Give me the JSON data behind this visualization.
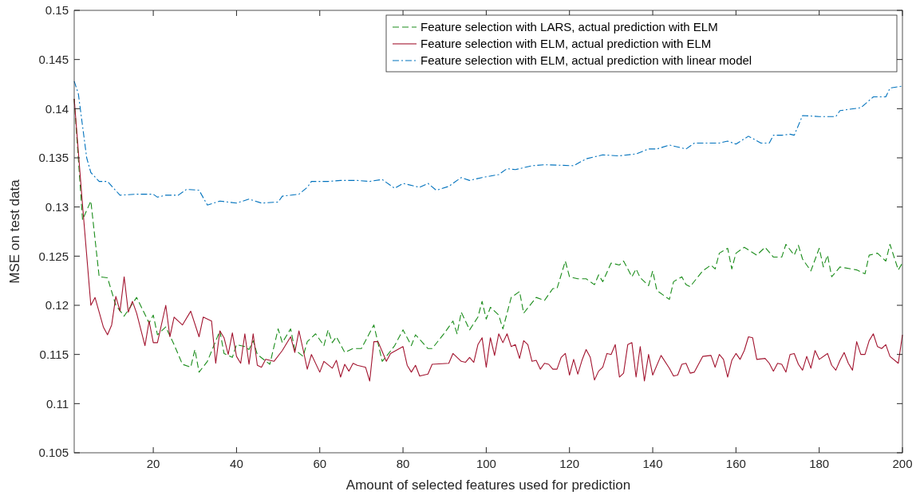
{
  "chart_data": {
    "type": "line",
    "xlabel": "Amount of selected features used for prediction",
    "ylabel": "MSE on test data",
    "xlim": [
      1,
      200
    ],
    "xticks": [
      20,
      40,
      60,
      80,
      100,
      120,
      140,
      160,
      180,
      200
    ],
    "ylim": [
      0.105,
      0.15
    ],
    "yticks": [
      0.105,
      0.11,
      0.115,
      0.12,
      0.125,
      0.13,
      0.135,
      0.14,
      0.145,
      0.15
    ],
    "grid": false,
    "legend": "top right",
    "series": [
      {
        "name": "Feature selection with LARS, actual prediction with ELM",
        "color": "#1a8c1a",
        "line_style": "dashed",
        "x": [
          1,
          3,
          5,
          7,
          9,
          11,
          13,
          16,
          19,
          20,
          21,
          23,
          25,
          27,
          29,
          30,
          31,
          33,
          36,
          37,
          39,
          40,
          42,
          43,
          44,
          45,
          48,
          50,
          51,
          53,
          54,
          56,
          57,
          59,
          61,
          62,
          63,
          64,
          66,
          68,
          70,
          73,
          75,
          76,
          78,
          80,
          82,
          83,
          86,
          87,
          90,
          92,
          93,
          94,
          96,
          98,
          99,
          100,
          101,
          103,
          104,
          106,
          108,
          109,
          112,
          114,
          116,
          117,
          119,
          120,
          122,
          124,
          126,
          127,
          128,
          130,
          132,
          133,
          135,
          136,
          137,
          139,
          140,
          141,
          144,
          145,
          147,
          148,
          149,
          152,
          154,
          155,
          156,
          158,
          159,
          160,
          162,
          165,
          167,
          169,
          170,
          171,
          172,
          174,
          175,
          176,
          178,
          180,
          181,
          182,
          183,
          185,
          189,
          191,
          192,
          194,
          196,
          197,
          199,
          200
        ],
        "values": [
          0.141,
          0.1287,
          0.1306,
          0.1229,
          0.1228,
          0.12,
          0.1189,
          0.1208,
          0.1182,
          0.119,
          0.117,
          0.1178,
          0.116,
          0.114,
          0.1137,
          0.1155,
          0.1132,
          0.1143,
          0.1174,
          0.1151,
          0.1147,
          0.116,
          0.1158,
          0.1155,
          0.1164,
          0.115,
          0.114,
          0.1176,
          0.1162,
          0.1176,
          0.1155,
          0.1148,
          0.1163,
          0.1171,
          0.1159,
          0.1175,
          0.1162,
          0.1168,
          0.1152,
          0.1156,
          0.1156,
          0.118,
          0.1143,
          0.1148,
          0.1159,
          0.1175,
          0.1159,
          0.117,
          0.1156,
          0.1156,
          0.1172,
          0.1184,
          0.1171,
          0.1193,
          0.1175,
          0.1188,
          0.1204,
          0.1186,
          0.1198,
          0.119,
          0.1176,
          0.1208,
          0.1214,
          0.1192,
          0.1208,
          0.1205,
          0.1217,
          0.1217,
          0.1245,
          0.1229,
          0.1227,
          0.1227,
          0.1221,
          0.1231,
          0.1224,
          0.1243,
          0.1241,
          0.1245,
          0.1229,
          0.1237,
          0.1228,
          0.122,
          0.1235,
          0.1215,
          0.1206,
          0.1224,
          0.1229,
          0.1221,
          0.1219,
          0.1235,
          0.1241,
          0.1237,
          0.1253,
          0.1258,
          0.1237,
          0.1253,
          0.1259,
          0.1251,
          0.1259,
          0.1249,
          0.1249,
          0.1249,
          0.1262,
          0.1251,
          0.1261,
          0.1247,
          0.1235,
          0.1258,
          0.1239,
          0.1251,
          0.1229,
          0.1239,
          0.1236,
          0.1232,
          0.1251,
          0.1253,
          0.1245,
          0.1262,
          0.1236,
          0.1243
        ]
      },
      {
        "name": "Feature selection with ELM, actual prediction with ELM",
        "color": "#a2142f",
        "line_style": "solid",
        "x": [
          1,
          3,
          5,
          6,
          8,
          9,
          10,
          11,
          12,
          13,
          14,
          15,
          16,
          18,
          19,
          20,
          21,
          23,
          24,
          25,
          27,
          29,
          31,
          32,
          34,
          35,
          36,
          37,
          38,
          39,
          40,
          41,
          42,
          43,
          44,
          45,
          46,
          47,
          49,
          51,
          53,
          54,
          55,
          56,
          57,
          58,
          60,
          61,
          63,
          64,
          65,
          66,
          67,
          68,
          69,
          71,
          72,
          73,
          74,
          76,
          77,
          80,
          81,
          82,
          83,
          84,
          86,
          87,
          91,
          92,
          94,
          95,
          96,
          97,
          98,
          99,
          100,
          101,
          102,
          103,
          104,
          105,
          106,
          107,
          108,
          109,
          110,
          111,
          112,
          113,
          114,
          115,
          116,
          117,
          118,
          119,
          120,
          121,
          122,
          123,
          124,
          125,
          126,
          127,
          128,
          129,
          130,
          131,
          132,
          133,
          134,
          135,
          136,
          137,
          138,
          139,
          140,
          142,
          144,
          145,
          146,
          147,
          148,
          149,
          150,
          152,
          154,
          155,
          156,
          157,
          158,
          159,
          160,
          161,
          162,
          163,
          164,
          165,
          167,
          168,
          169,
          170,
          171,
          172,
          173,
          174,
          175,
          176,
          177,
          178,
          179,
          180,
          182,
          183,
          184,
          185,
          186,
          187,
          188,
          189,
          190,
          191,
          192,
          193,
          194,
          195,
          196,
          197,
          199,
          200
        ],
        "values": [
          0.141,
          0.1302,
          0.12,
          0.1208,
          0.1178,
          0.117,
          0.118,
          0.1209,
          0.1194,
          0.1229,
          0.1193,
          0.1204,
          0.1192,
          0.1159,
          0.1184,
          0.1162,
          0.1162,
          0.12,
          0.1168,
          0.1188,
          0.118,
          0.1194,
          0.1168,
          0.1188,
          0.1184,
          0.1141,
          0.1174,
          0.1167,
          0.115,
          0.1172,
          0.1148,
          0.1141,
          0.1171,
          0.114,
          0.1171,
          0.1139,
          0.1137,
          0.1145,
          0.1143,
          0.1154,
          0.1168,
          0.1152,
          0.1174,
          0.1155,
          0.1135,
          0.115,
          0.1132,
          0.1143,
          0.1136,
          0.1144,
          0.1127,
          0.114,
          0.1133,
          0.1141,
          0.1139,
          0.1137,
          0.1123,
          0.1163,
          0.1163,
          0.1143,
          0.1151,
          0.1158,
          0.1139,
          0.1132,
          0.1139,
          0.1128,
          0.113,
          0.114,
          0.1141,
          0.1151,
          0.1143,
          0.1142,
          0.1147,
          0.1142,
          0.116,
          0.1167,
          0.1137,
          0.1167,
          0.1149,
          0.1171,
          0.1162,
          0.1171,
          0.1158,
          0.116,
          0.1146,
          0.1164,
          0.116,
          0.1143,
          0.1144,
          0.1135,
          0.1141,
          0.114,
          0.1135,
          0.1135,
          0.1147,
          0.1151,
          0.1129,
          0.1145,
          0.113,
          0.1144,
          0.1155,
          0.1147,
          0.1124,
          0.1133,
          0.1137,
          0.1151,
          0.115,
          0.116,
          0.1127,
          0.1131,
          0.116,
          0.1162,
          0.1127,
          0.1158,
          0.1123,
          0.115,
          0.1129,
          0.1149,
          0.1136,
          0.1128,
          0.1129,
          0.114,
          0.1141,
          0.1131,
          0.1132,
          0.1148,
          0.1149,
          0.1137,
          0.115,
          0.1145,
          0.1127,
          0.1144,
          0.1151,
          0.1145,
          0.1154,
          0.1168,
          0.1167,
          0.1145,
          0.1146,
          0.1141,
          0.1133,
          0.1141,
          0.114,
          0.1132,
          0.115,
          0.1151,
          0.114,
          0.1134,
          0.1148,
          0.1136,
          0.1154,
          0.1145,
          0.1151,
          0.1139,
          0.1134,
          0.1144,
          0.1152,
          0.1141,
          0.1134,
          0.1163,
          0.115,
          0.115,
          0.1164,
          0.1171,
          0.1158,
          0.1156,
          0.116,
          0.1148,
          0.1141,
          0.117
        ]
      },
      {
        "name": "Feature selection with ELM, actual prediction with linear model",
        "color": "#0072bd",
        "line_style": "dashdot",
        "x": [
          1,
          2,
          4,
          5,
          7,
          9,
          12,
          16,
          20,
          21,
          23,
          26,
          28,
          31,
          33,
          36,
          40,
          43,
          46,
          50,
          51,
          55,
          57,
          58,
          62,
          65,
          69,
          72,
          75,
          78,
          80,
          84,
          86,
          88,
          91,
          94,
          96,
          99,
          103,
          105,
          107,
          111,
          114,
          121,
          124,
          128,
          132,
          136,
          139,
          141,
          144,
          148,
          150,
          156,
          158,
          160,
          163,
          166,
          168,
          169,
          171,
          173,
          174,
          176,
          180,
          184,
          185,
          190,
          193,
          196,
          197,
          200
        ],
        "values": [
          0.1428,
          0.1415,
          0.135,
          0.1335,
          0.1326,
          0.1326,
          0.1312,
          0.1313,
          0.1313,
          0.131,
          0.1312,
          0.1312,
          0.1318,
          0.1317,
          0.1302,
          0.1306,
          0.1304,
          0.1308,
          0.1304,
          0.1305,
          0.1311,
          0.1313,
          0.132,
          0.1326,
          0.1326,
          0.1327,
          0.1327,
          0.1326,
          0.1328,
          0.1319,
          0.1324,
          0.132,
          0.1324,
          0.1317,
          0.1321,
          0.133,
          0.1327,
          0.133,
          0.1333,
          0.1339,
          0.1338,
          0.1342,
          0.1343,
          0.1342,
          0.1349,
          0.1353,
          0.1352,
          0.1354,
          0.1359,
          0.1359,
          0.1363,
          0.1359,
          0.1365,
          0.1365,
          0.1367,
          0.1364,
          0.1372,
          0.1365,
          0.1365,
          0.1373,
          0.1373,
          0.1374,
          0.1373,
          0.1393,
          0.1392,
          0.1392,
          0.1398,
          0.1401,
          0.1412,
          0.1412,
          0.1421,
          0.1423
        ]
      }
    ]
  }
}
